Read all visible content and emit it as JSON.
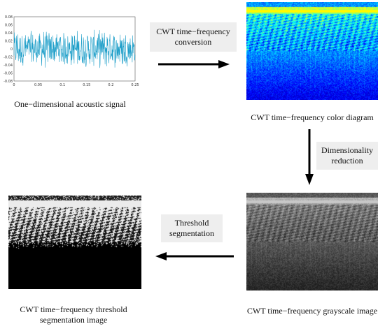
{
  "signal_panel": {
    "caption": "One−dimensional acoustic signal",
    "y_ticks": [
      "0.08",
      "0.06",
      "0.04",
      "0.02",
      "0",
      "-0.02",
      "-0.04",
      "-0.06",
      "-0.08"
    ],
    "x_ticks": [
      "0",
      "0.05",
      "0.1",
      "0.15",
      "0.2",
      "0.25"
    ],
    "line_color": "#1f9fc9"
  },
  "color_panel": {
    "caption": "CWT time−frequency color diagram",
    "colormap": "jet"
  },
  "gray_panel": {
    "caption": "CWT time−frequency grayscale image"
  },
  "threshold_panel": {
    "caption_line1": "CWT time−frequency threshold",
    "caption_line2": "segmentation image"
  },
  "steps": {
    "cwt_conversion": {
      "line1": "CWT  time−frequency",
      "line2": "conversion"
    },
    "dim_reduction": {
      "line1": "Dimensionality",
      "line2": "reduction"
    },
    "threshold_seg": {
      "line1": "Threshold",
      "line2": "segmentation"
    }
  },
  "arrow_color": "#000000"
}
